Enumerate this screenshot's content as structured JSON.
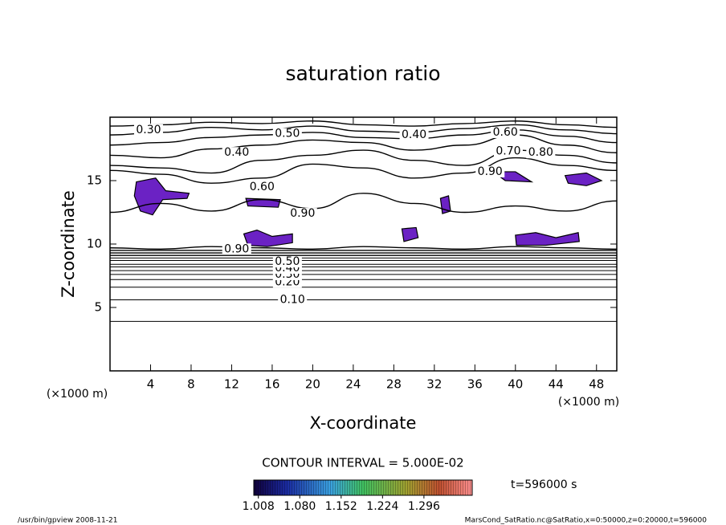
{
  "chart_data": {
    "type": "contour",
    "title": "saturation ratio",
    "x_label": "X-coordinate",
    "y_label": "Z-coordinate",
    "x_unit": "(×1000 m)",
    "y_unit": "(×1000 m)",
    "xlim": [
      0,
      50
    ],
    "ylim": [
      0,
      20
    ],
    "xticks": [
      4,
      8,
      12,
      16,
      20,
      24,
      28,
      32,
      36,
      40,
      44,
      48
    ],
    "yticks": [
      5,
      10,
      15
    ],
    "contour_interval": "CONTOUR INTERVAL = 5.000E-02",
    "time_label": "t=596000 s",
    "line_color": "#000000",
    "shade_color": "#6b22c4",
    "contour_x": [
      0,
      5,
      10,
      15,
      20,
      25,
      30,
      35,
      40,
      45,
      50
    ],
    "contours": [
      {
        "level": 0.05,
        "z": [
          3.9,
          3.9,
          3.9,
          3.9,
          3.9,
          3.9,
          3.9,
          3.9,
          3.9,
          3.9,
          3.9
        ]
      },
      {
        "level": 0.1,
        "z": [
          5.6,
          5.6,
          5.6,
          5.6,
          5.6,
          5.6,
          5.6,
          5.6,
          5.6,
          5.6,
          5.6
        ]
      },
      {
        "level": 0.15,
        "z": [
          6.6,
          6.6,
          6.6,
          6.6,
          6.6,
          6.6,
          6.6,
          6.6,
          6.6,
          6.6,
          6.6
        ]
      },
      {
        "level": 0.2,
        "z": [
          7.2,
          7.2,
          7.2,
          7.2,
          7.2,
          7.2,
          7.2,
          7.2,
          7.2,
          7.2,
          7.2
        ]
      },
      {
        "level": 0.25,
        "z": [
          7.6,
          7.6,
          7.6,
          7.6,
          7.6,
          7.6,
          7.6,
          7.6,
          7.6,
          7.6,
          7.6
        ]
      },
      {
        "level": 0.3,
        "z": [
          7.9,
          7.9,
          7.9,
          7.9,
          7.9,
          7.9,
          7.9,
          7.9,
          7.9,
          7.9,
          7.9
        ]
      },
      {
        "level": 0.35,
        "z": [
          8.2,
          8.2,
          8.2,
          8.2,
          8.2,
          8.2,
          8.2,
          8.2,
          8.2,
          8.2,
          8.2
        ]
      },
      {
        "level": 0.4,
        "z": [
          8.4,
          8.4,
          8.4,
          8.4,
          8.4,
          8.4,
          8.4,
          8.4,
          8.4,
          8.4,
          8.4
        ]
      },
      {
        "level": 0.45,
        "z": [
          8.7,
          8.7,
          8.7,
          8.7,
          8.7,
          8.7,
          8.7,
          8.7,
          8.7,
          8.7,
          8.7
        ]
      },
      {
        "level": 0.5,
        "z": [
          8.9,
          8.9,
          8.9,
          8.9,
          8.9,
          8.9,
          8.9,
          8.9,
          8.9,
          8.9,
          8.9
        ]
      },
      {
        "level": 0.55,
        "z": [
          9.1,
          9.1,
          9.1,
          9.1,
          9.1,
          9.1,
          9.1,
          9.1,
          9.1,
          9.1,
          9.1
        ]
      },
      {
        "level": 0.6,
        "z": [
          9.3,
          9.3,
          9.3,
          9.3,
          9.3,
          9.3,
          9.3,
          9.3,
          9.3,
          9.3,
          9.3
        ]
      },
      {
        "level": 0.7,
        "z": [
          9.5,
          9.5,
          9.5,
          9.5,
          9.5,
          9.5,
          9.5,
          9.5,
          9.5,
          9.5,
          9.5
        ]
      },
      {
        "level": 0.8,
        "z": [
          9.7,
          9.6,
          9.8,
          9.7,
          9.6,
          9.8,
          9.7,
          9.6,
          9.8,
          9.7,
          9.6
        ]
      },
      {
        "level": 0.9,
        "z": [
          12.5,
          13.2,
          12.6,
          13.5,
          12.8,
          14.0,
          13.2,
          12.5,
          13.0,
          12.6,
          13.4
        ]
      },
      {
        "level": 0.8,
        "z": [
          15.8,
          15.5,
          14.8,
          15.2,
          16.3,
          16.0,
          15.2,
          15.6,
          16.8,
          16.2,
          15.8
        ]
      },
      {
        "level": 0.7,
        "z": [
          16.2,
          16.0,
          15.6,
          16.6,
          17.0,
          17.4,
          16.6,
          16.2,
          17.4,
          17.0,
          16.4
        ]
      },
      {
        "level": 0.6,
        "z": [
          17.0,
          16.8,
          17.5,
          17.8,
          18.2,
          18.0,
          17.4,
          17.8,
          18.6,
          17.8,
          17.2
        ]
      },
      {
        "level": 0.5,
        "z": [
          17.8,
          18.0,
          18.4,
          18.6,
          18.8,
          18.4,
          18.3,
          18.6,
          19.0,
          18.5,
          18.0
        ]
      },
      {
        "level": 0.4,
        "z": [
          18.6,
          18.8,
          19.2,
          19.0,
          19.3,
          18.9,
          18.8,
          19.1,
          19.4,
          19.0,
          18.7
        ]
      },
      {
        "level": 0.3,
        "z": [
          19.3,
          19.4,
          19.6,
          19.5,
          19.7,
          19.4,
          19.3,
          19.5,
          19.7,
          19.4,
          19.2
        ]
      }
    ],
    "contour_labels": [
      {
        "value": 0.1,
        "label": "0.10",
        "x": 18,
        "z": 5.6
      },
      {
        "value": 0.2,
        "label": "0.20",
        "x": 17.5,
        "z": 7.0
      },
      {
        "value": 0.3,
        "label": "0.30",
        "x": 17.5,
        "z": 7.6
      },
      {
        "value": 0.4,
        "label": "0.40",
        "x": 17.5,
        "z": 8.1
      },
      {
        "value": 0.5,
        "label": "0.50",
        "x": 17.5,
        "z": 8.6
      },
      {
        "value": 0.9,
        "label": "0.90",
        "x": 12.5,
        "z": 9.6
      },
      {
        "value": 0.9,
        "label": "0.90",
        "x": 19,
        "z": 12.4
      },
      {
        "value": 0.6,
        "label": "0.60",
        "x": 15,
        "z": 14.5
      },
      {
        "value": 0.4,
        "label": "0.40",
        "x": 12.5,
        "z": 17.2
      },
      {
        "value": 0.3,
        "label": "0.30",
        "x": 3.8,
        "z": 19.0
      },
      {
        "value": 0.5,
        "label": "0.50",
        "x": 17.5,
        "z": 18.7
      },
      {
        "value": 0.4,
        "label": "0.40",
        "x": 30,
        "z": 18.6
      },
      {
        "value": 0.6,
        "label": "0.60",
        "x": 39,
        "z": 18.8
      },
      {
        "value": 0.7,
        "label": "0.70",
        "x": 39.3,
        "z": 17.3
      },
      {
        "value": 0.8,
        "label": "0.80",
        "x": 42.5,
        "z": 17.2
      },
      {
        "value": 0.9,
        "label": "0.90",
        "x": 37.5,
        "z": 15.7
      }
    ],
    "shaded_regions": [
      {
        "points": [
          [
            2.6,
            14.9
          ],
          [
            4.5,
            15.2
          ],
          [
            5.5,
            14.2
          ],
          [
            7.8,
            14.0
          ],
          [
            7.6,
            13.6
          ],
          [
            5.2,
            13.5
          ],
          [
            4.2,
            12.3
          ],
          [
            3,
            12.6
          ],
          [
            2.4,
            13.8
          ]
        ]
      },
      {
        "points": [
          [
            13.4,
            13.6
          ],
          [
            16.8,
            13.5
          ],
          [
            16.6,
            12.9
          ],
          [
            13.6,
            13.0
          ]
        ]
      },
      {
        "points": [
          [
            13.2,
            10.8
          ],
          [
            14.5,
            11.1
          ],
          [
            16,
            10.6
          ],
          [
            18,
            10.8
          ],
          [
            18,
            10.1
          ],
          [
            15.5,
            9.8
          ],
          [
            13.6,
            9.9
          ]
        ]
      },
      {
        "points": [
          [
            28.8,
            11.2
          ],
          [
            30.2,
            11.3
          ],
          [
            30.4,
            10.5
          ],
          [
            29,
            10.2
          ]
        ]
      },
      {
        "points": [
          [
            40,
            10.7
          ],
          [
            42,
            10.9
          ],
          [
            44,
            10.5
          ],
          [
            46.2,
            10.9
          ],
          [
            46.3,
            10.2
          ],
          [
            43,
            9.9
          ],
          [
            40.1,
            9.9
          ]
        ]
      },
      {
        "points": [
          [
            37.8,
            15.7
          ],
          [
            40,
            15.7
          ],
          [
            41.6,
            14.9
          ],
          [
            39,
            15.0
          ]
        ]
      },
      {
        "points": [
          [
            44.9,
            15.4
          ],
          [
            47,
            15.6
          ],
          [
            48.5,
            15.0
          ],
          [
            47,
            14.6
          ],
          [
            45.2,
            14.8
          ]
        ]
      },
      {
        "points": [
          [
            32.6,
            13.6
          ],
          [
            33.4,
            13.8
          ],
          [
            33.6,
            12.6
          ],
          [
            32.8,
            12.4
          ]
        ]
      }
    ],
    "colorbar_lim": [
      1.0,
      1.38
    ],
    "colorbar_ticks": [
      1.008,
      {
        "value": 1.08,
        "label": "1.080"
      },
      1.152,
      1.224,
      1.296
    ],
    "footer_left": "/usr/bin/gpview   2008-11-21",
    "footer_right": "MarsCond_SatRatio.nc@SatRatio,x=0:50000,z=0:20000,t=596000"
  }
}
